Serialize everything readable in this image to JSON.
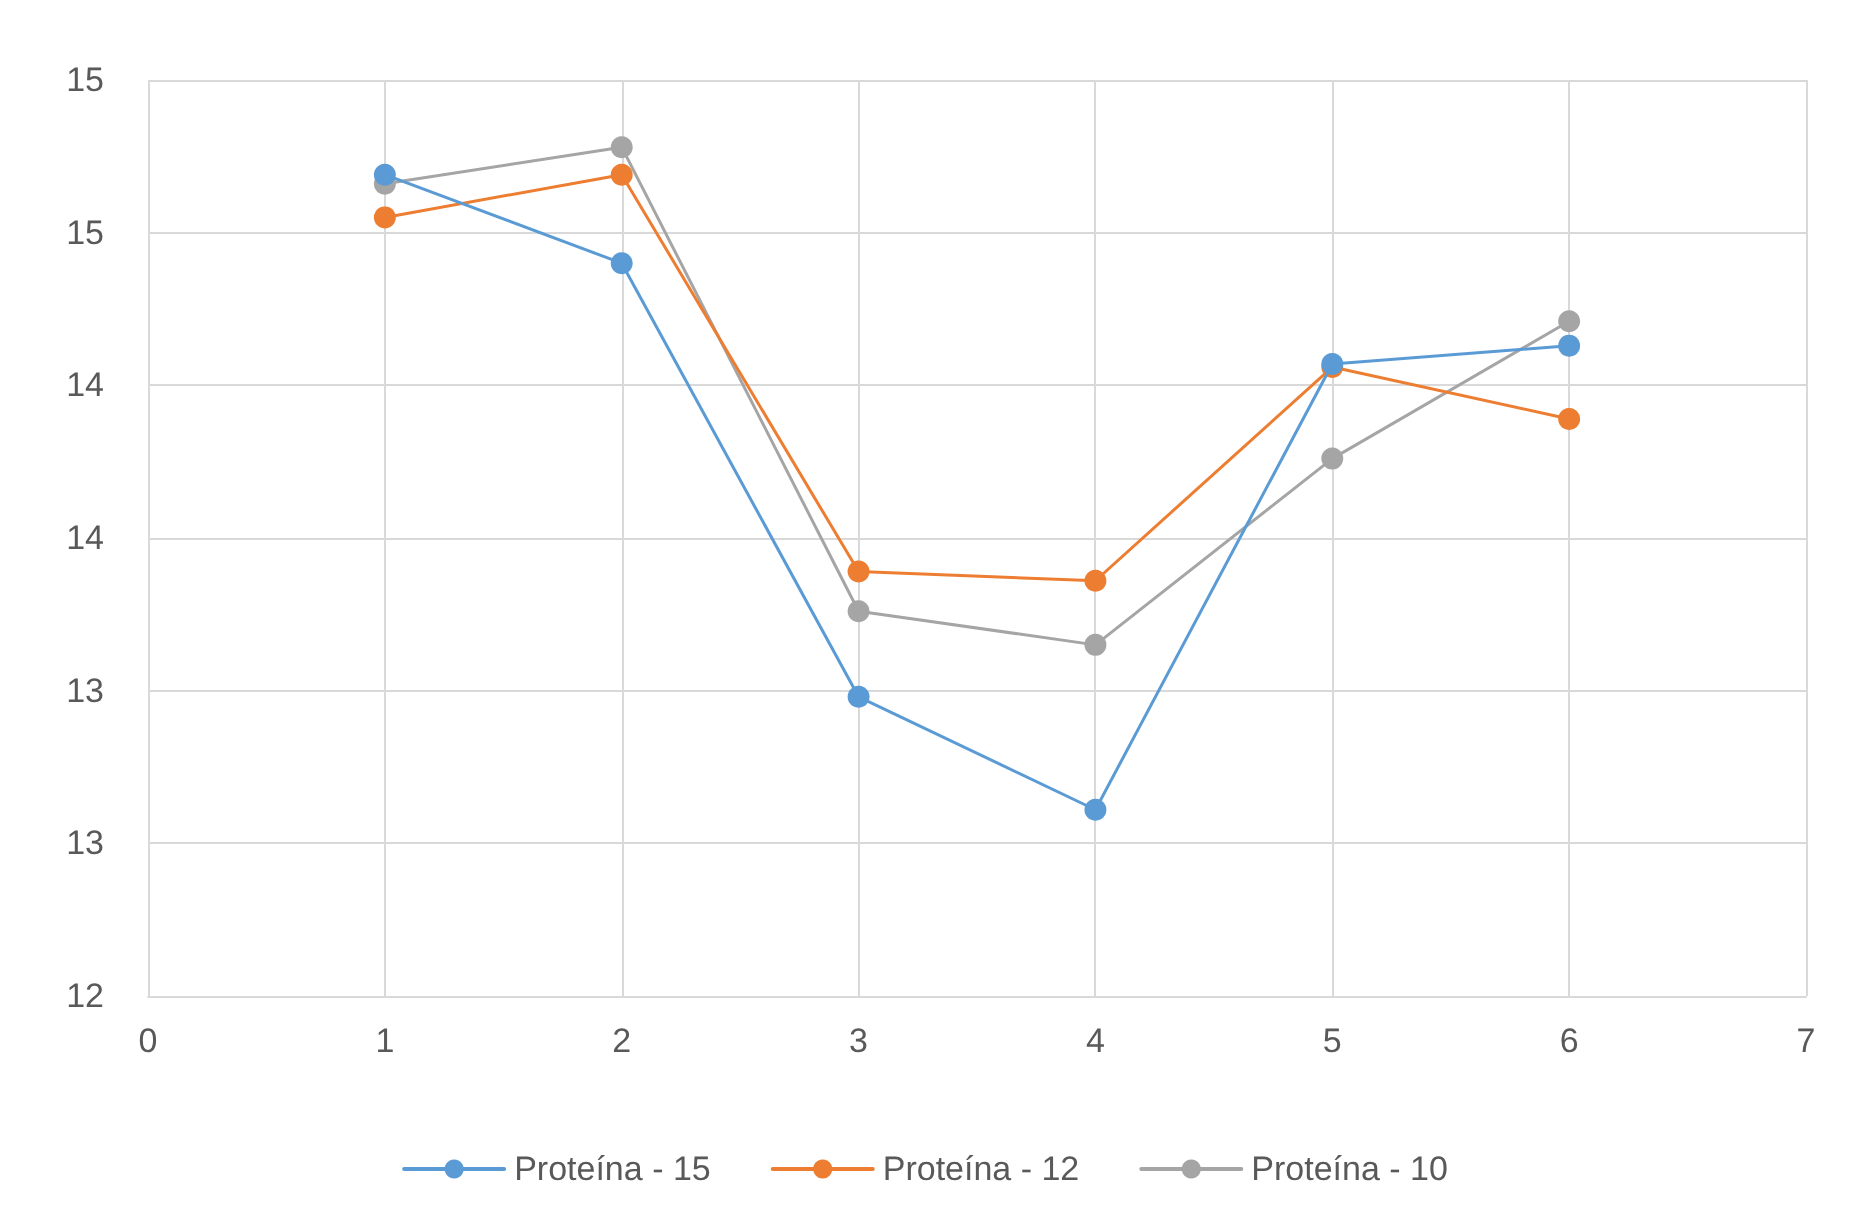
{
  "chart_data": {
    "type": "line",
    "x": [
      1,
      2,
      3,
      4,
      5,
      6
    ],
    "series": [
      {
        "name": "Proteína - 15",
        "color": "#5b9bd5",
        "values": [
          14.69,
          14.4,
          12.98,
          12.61,
          14.07,
          14.13
        ]
      },
      {
        "name": "Proteína - 12",
        "color": "#ed7d31",
        "values": [
          14.55,
          14.69,
          13.39,
          13.36,
          14.06,
          13.89
        ]
      },
      {
        "name": "Proteína - 10",
        "color": "#a5a5a5",
        "values": [
          14.66,
          14.78,
          13.26,
          13.15,
          13.76,
          14.21
        ]
      }
    ],
    "xlim": [
      0,
      7
    ],
    "xticks": [
      0,
      1,
      2,
      3,
      4,
      5,
      6,
      7
    ],
    "ylim": [
      12,
      15
    ],
    "yticks": [
      12,
      {
        "value": 12.5,
        "label": "13"
      },
      13,
      {
        "value": 13.5,
        "label": "14"
      },
      14,
      {
        "value": 14.5,
        "label": "15"
      },
      15
    ],
    "grid": true,
    "legend": "bottom",
    "marker": "circle",
    "line_style": "solid"
  }
}
